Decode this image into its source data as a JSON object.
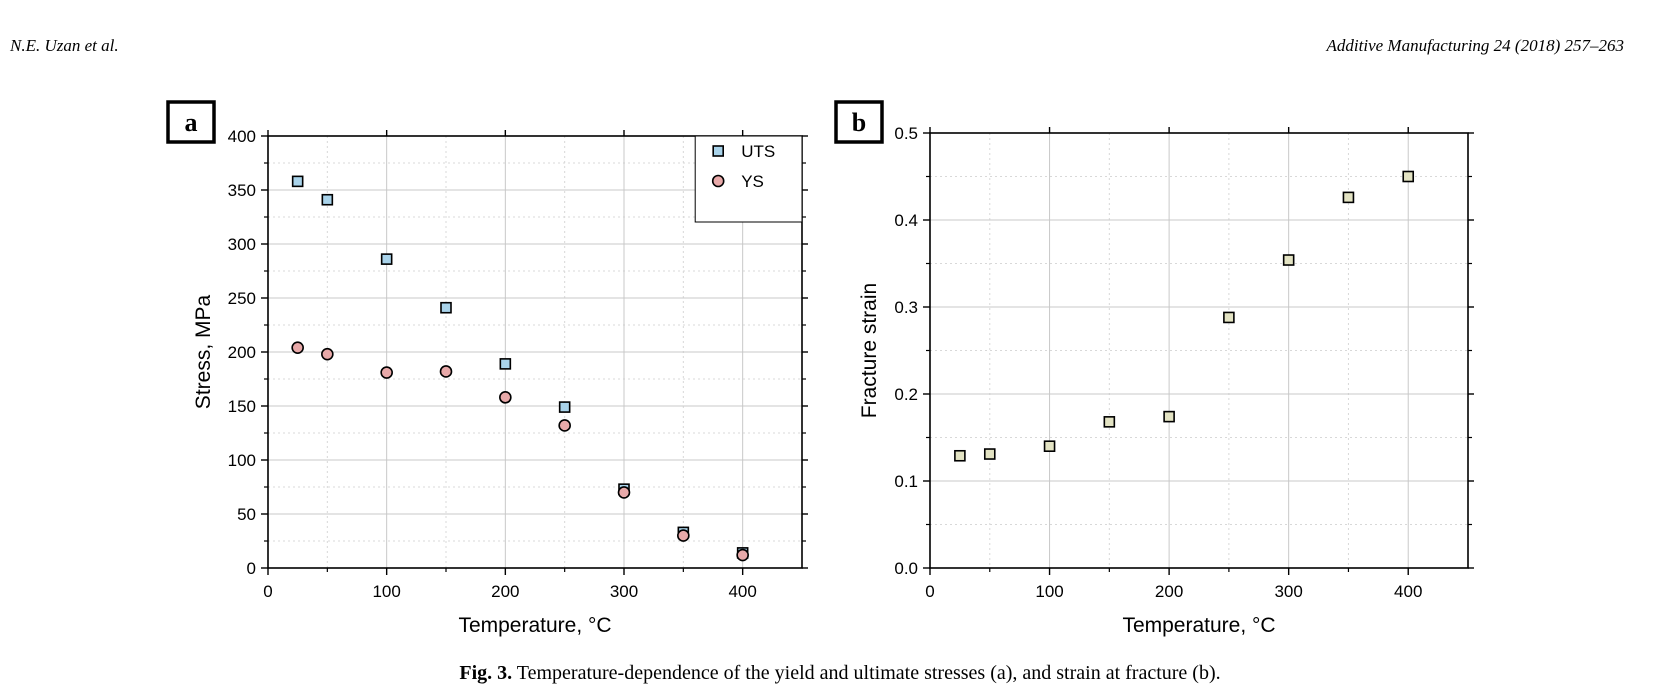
{
  "header": {
    "left": "N.E. Uzan et al.",
    "right": "Additive Manufacturing 24 (2018) 257–263"
  },
  "caption": {
    "label": "Fig. 3.",
    "text": "Temperature-dependence of the yield and ultimate stresses (a), and strain at fracture (b)."
  },
  "chart_data": [
    {
      "panel": "a",
      "type": "scatter",
      "xlabel": "Temperature, °C",
      "ylabel": "Stress, MPa",
      "xlim": [
        0,
        450
      ],
      "ylim": [
        0,
        400
      ],
      "xticks": [
        0,
        100,
        200,
        300,
        400
      ],
      "yticks": [
        0,
        50,
        100,
        150,
        200,
        250,
        300,
        350,
        400
      ],
      "grid": true,
      "legend": "top-right",
      "series": [
        {
          "name": "UTS",
          "marker": "square",
          "color": "#a9d3ea",
          "x": [
            25,
            50,
            100,
            150,
            200,
            250,
            300,
            350,
            400
          ],
          "y": [
            358,
            341,
            286,
            241,
            189,
            149,
            73,
            33,
            14
          ]
        },
        {
          "name": "YS",
          "marker": "circle",
          "color": "#e8a9a9",
          "x": [
            25,
            50,
            100,
            150,
            200,
            250,
            300,
            350,
            400
          ],
          "y": [
            204,
            198,
            181,
            182,
            158,
            132,
            70,
            30,
            12
          ]
        }
      ]
    },
    {
      "panel": "b",
      "type": "scatter",
      "xlabel": "Temperature, °C",
      "ylabel": "Fracture strain",
      "xlim": [
        0,
        450
      ],
      "ylim": [
        0,
        0.5
      ],
      "xticks": [
        0,
        100,
        200,
        300,
        400
      ],
      "yticks": [
        "0.0",
        "0.1",
        "0.2",
        "0.3",
        "0.4",
        "0.5"
      ],
      "grid": true,
      "series": [
        {
          "marker": "square",
          "color": "#e3e3c3",
          "x": [
            25,
            50,
            100,
            150,
            200,
            250,
            300,
            350,
            400
          ],
          "y": [
            0.129,
            0.131,
            0.14,
            0.168,
            0.174,
            0.288,
            0.354,
            0.426,
            0.45
          ]
        }
      ]
    }
  ]
}
